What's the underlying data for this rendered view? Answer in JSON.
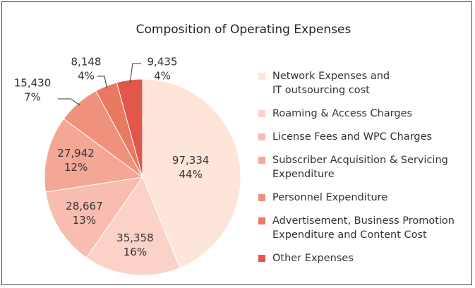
{
  "chart_data": {
    "type": "pie",
    "title": "Composition of Operating Expenses",
    "categories": [
      "Network Expenses and\nIT outsourcing cost",
      "Roaming & Access Charges",
      "License Fees and WPC Charges",
      "Subscriber Acquisition & Servicing\nExpenditure",
      "Personnel Expenditure",
      "Advertisement, Business Promotion\nExpenditure and Content Cost",
      "Other Expenses"
    ],
    "values": [
      97334,
      35358,
      28667,
      27942,
      15430,
      8148,
      9435
    ],
    "value_labels": [
      "97,334",
      "35,358",
      "28,667",
      "27,942",
      "15,430",
      "8,148",
      "9,435"
    ],
    "percents": [
      44,
      16,
      13,
      12,
      7,
      4,
      4
    ],
    "percent_labels": [
      "44%",
      "16%",
      "13%",
      "12%",
      "7%",
      "4%",
      "4%"
    ],
    "colors": [
      "#fde5da",
      "#fbd1c8",
      "#f8bdb0",
      "#f4a795",
      "#ef917d",
      "#ea7964",
      "#e1574b"
    ]
  }
}
